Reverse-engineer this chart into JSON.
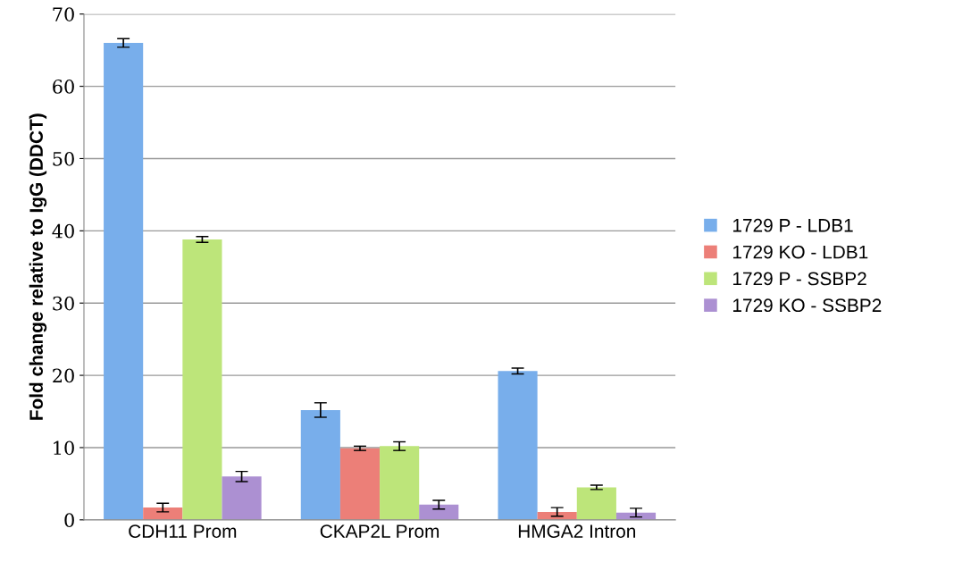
{
  "chart_data": {
    "type": "bar",
    "ylabel": "Fold change relative to IgG (DDCT)",
    "categories": [
      "CDH11 Prom",
      "CKAP2L Prom",
      "HMGA2 Intron"
    ],
    "series": [
      {
        "name": "1729 P - LDB1",
        "color": "#78aeeb",
        "values": [
          66,
          15.2,
          20.6
        ],
        "errors": [
          0.6,
          1.0,
          0.4
        ]
      },
      {
        "name": "1729 KO - LDB1",
        "color": "#ec7f78",
        "values": [
          1.7,
          9.9,
          1.1
        ],
        "errors": [
          0.6,
          0.3,
          0.6
        ]
      },
      {
        "name": "1729 P - SSBP2",
        "color": "#bde57a",
        "values": [
          38.8,
          10.2,
          4.5
        ],
        "errors": [
          0.4,
          0.6,
          0.3
        ]
      },
      {
        "name": "1729 KO - SSBP2",
        "color": "#ac90d2",
        "values": [
          6.0,
          2.1,
          1.0
        ],
        "errors": [
          0.7,
          0.6,
          0.6
        ]
      }
    ],
    "ylim": [
      0,
      70
    ],
    "yticks": [
      0,
      10,
      20,
      30,
      40,
      50,
      60,
      70
    ],
    "grid": "y",
    "legend": "right"
  }
}
